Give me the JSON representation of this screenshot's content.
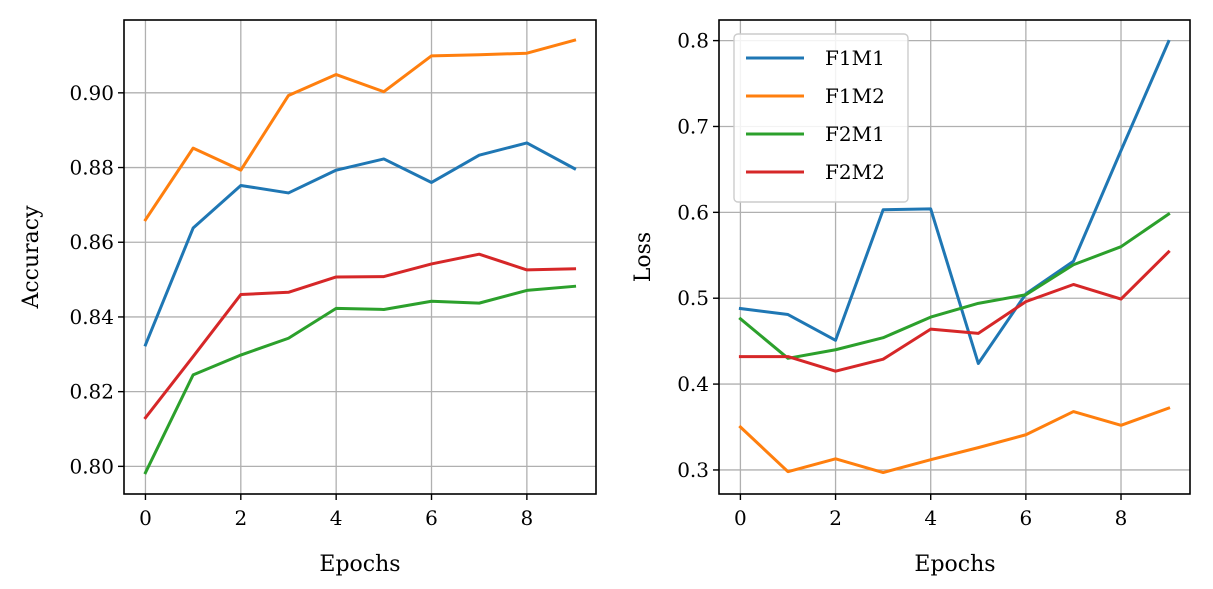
{
  "chart_data": [
    {
      "type": "line",
      "title": "",
      "xlabel": "Epochs",
      "ylabel": "Accuracy",
      "x": [
        0,
        1,
        2,
        3,
        4,
        5,
        6,
        7,
        8,
        9
      ],
      "xlim": [
        -0.45,
        9.45
      ],
      "ylim": [
        0.7926,
        0.9195
      ],
      "xticks": [
        0,
        2,
        4,
        6,
        8
      ],
      "xtick_labels": [
        "0",
        "2",
        "4",
        "6",
        "8"
      ],
      "yticks": [
        0.8,
        0.82,
        0.84,
        0.86,
        0.88,
        0.9
      ],
      "ytick_labels": [
        "0.80",
        "0.82",
        "0.84",
        "0.86",
        "0.88",
        "0.90"
      ],
      "grid": true,
      "series": [
        {
          "name": "F1M1",
          "color": "#1f77b4",
          "values": [
            0.8325,
            0.8638,
            0.8752,
            0.8732,
            0.8793,
            0.8823,
            0.876,
            0.8833,
            0.8866,
            0.8797
          ]
        },
        {
          "name": "F1M2",
          "color": "#ff7f0e",
          "values": [
            0.866,
            0.8852,
            0.8793,
            0.8993,
            0.9049,
            0.9003,
            0.9099,
            0.9102,
            0.9106,
            0.9141
          ]
        },
        {
          "name": "F2M1",
          "color": "#2ca02c",
          "values": [
            0.7983,
            0.8245,
            0.8298,
            0.8343,
            0.8423,
            0.842,
            0.8442,
            0.8437,
            0.8471,
            0.8482
          ]
        },
        {
          "name": "F2M2",
          "color": "#d62728",
          "values": [
            0.813,
            0.8294,
            0.846,
            0.8466,
            0.8507,
            0.8508,
            0.8542,
            0.8568,
            0.8526,
            0.8529
          ]
        }
      ]
    },
    {
      "type": "line",
      "title": "",
      "xlabel": "Epochs",
      "ylabel": "Loss",
      "x": [
        0,
        1,
        2,
        3,
        4,
        5,
        6,
        7,
        8,
        9
      ],
      "xlim": [
        -0.45,
        9.45
      ],
      "ylim": [
        0.272,
        0.824
      ],
      "xticks": [
        0,
        2,
        4,
        6,
        8
      ],
      "xtick_labels": [
        "0",
        "2",
        "4",
        "6",
        "8"
      ],
      "yticks": [
        0.3,
        0.4,
        0.5,
        0.6,
        0.7,
        0.8
      ],
      "ytick_labels": [
        "0.3",
        "0.4",
        "0.5",
        "0.6",
        "0.7",
        "0.8"
      ],
      "grid": true,
      "legend": "top-left",
      "series": [
        {
          "name": "F1M1",
          "color": "#1f77b4",
          "values": [
            0.488,
            0.481,
            0.451,
            0.603,
            0.604,
            0.424,
            0.505,
            0.543,
            0.672,
            0.799
          ]
        },
        {
          "name": "F1M2",
          "color": "#ff7f0e",
          "values": [
            0.35,
            0.298,
            0.313,
            0.297,
            0.312,
            0.326,
            0.341,
            0.368,
            0.352,
            0.372
          ]
        },
        {
          "name": "F2M1",
          "color": "#2ca02c",
          "values": [
            0.476,
            0.43,
            0.44,
            0.454,
            0.478,
            0.494,
            0.504,
            0.539,
            0.56,
            0.598
          ]
        },
        {
          "name": "F2M2",
          "color": "#d62728",
          "values": [
            0.432,
            0.432,
            0.415,
            0.429,
            0.464,
            0.459,
            0.496,
            0.516,
            0.499,
            0.554
          ]
        }
      ]
    }
  ]
}
